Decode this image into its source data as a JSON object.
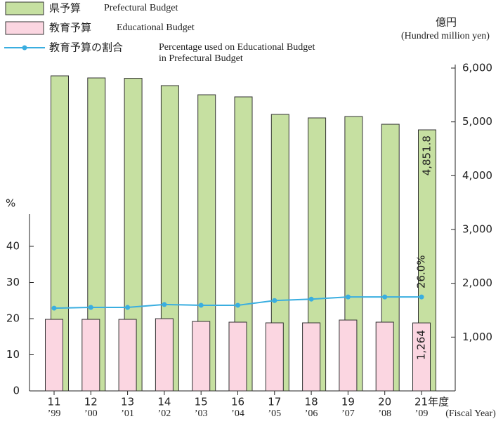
{
  "chart_data": {
    "type": "bar",
    "y_title": [
      "億円",
      "(Hundred million yen)"
    ],
    "y2_title": "%",
    "x_title": "(Fiscal Year)",
    "categories": [
      "11",
      "12",
      "13",
      "14",
      "15",
      "16",
      "17",
      "18",
      "19",
      "20",
      "21年度"
    ],
    "categories_western": [
      "’99",
      "’00",
      "’01",
      "’02",
      "’03",
      "’04",
      "’05",
      "’06",
      "’07",
      "’08",
      "’09"
    ],
    "ylim": [
      0,
      6000
    ],
    "yticks": [
      {
        "value": 1000,
        "label": "1,000"
      },
      {
        "value": 2000,
        "label": "2,000"
      },
      {
        "value": 3000,
        "label": "3,000"
      },
      {
        "value": 4000,
        "label": "4,000"
      },
      {
        "value": 5000,
        "label": "5,000"
      },
      {
        "value": 6000,
        "label": "6,000"
      }
    ],
    "y2lim": [
      0,
      50
    ],
    "y2ticks": [
      0,
      10,
      20,
      30,
      40
    ],
    "series": [
      {
        "name": "県予算",
        "name_en": [
          "Prefectural Budget"
        ],
        "type": "bar",
        "color": "#c6e0a1",
        "values": [
          5856,
          5817,
          5810,
          5674,
          5504,
          5465,
          5139,
          5074,
          5100,
          4956,
          4851.8
        ],
        "value_labels": [
          null,
          null,
          null,
          null,
          null,
          null,
          null,
          null,
          null,
          null,
          "4,851.8"
        ]
      },
      {
        "name": "教育予算",
        "name_en": [
          "Educational Budget"
        ],
        "type": "bar",
        "color": "#fbd6e1",
        "values": [
          1330,
          1330,
          1330,
          1343,
          1291,
          1278,
          1265,
          1265,
          1317,
          1278,
          1264
        ],
        "value_labels": [
          null,
          null,
          null,
          null,
          null,
          null,
          null,
          null,
          null,
          null,
          "1,264"
        ]
      },
      {
        "name": "教育予算の割合",
        "name_en": [
          "Percentage used on Educational Budget",
          "in Prefectural Budget"
        ],
        "type": "line",
        "axis": "y2",
        "color": "#3aaee0",
        "values": [
          22.9,
          23.1,
          23.1,
          23.9,
          23.7,
          23.7,
          25.0,
          25.4,
          26.0,
          26.0,
          26.0
        ],
        "value_labels": [
          null,
          null,
          null,
          null,
          null,
          null,
          null,
          null,
          null,
          null,
          "26.0%"
        ]
      }
    ]
  }
}
